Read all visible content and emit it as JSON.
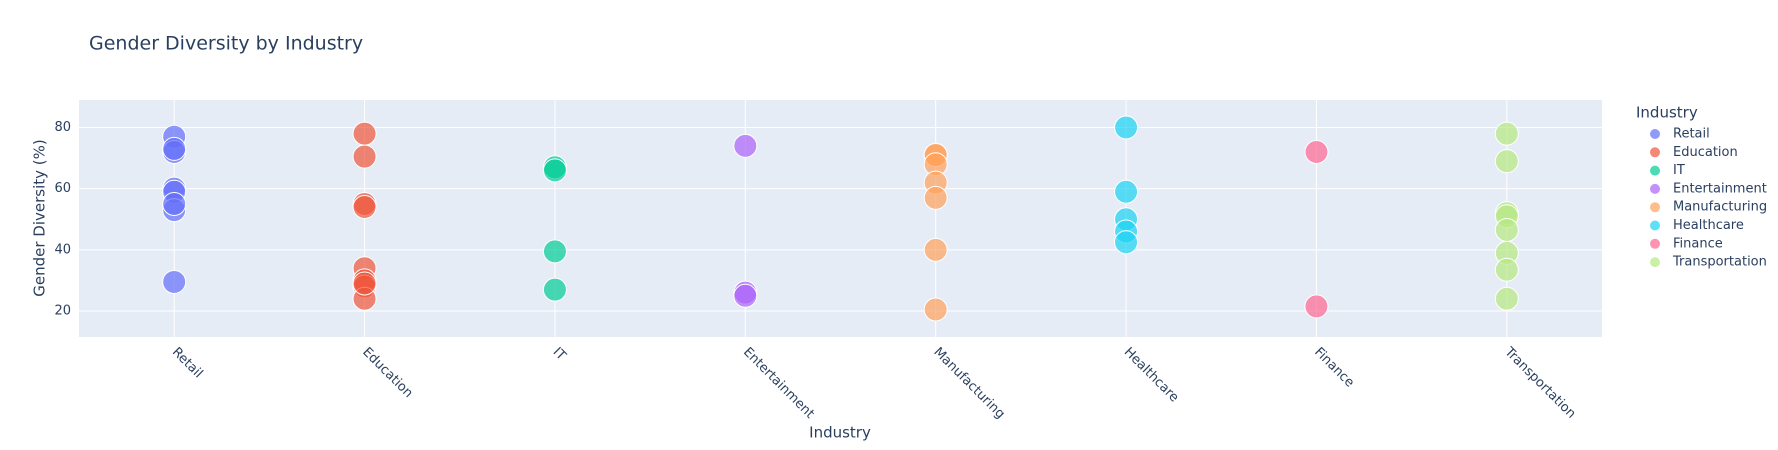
{
  "chart_data": {
    "type": "scatter",
    "title": "Gender Diversity by Industry",
    "x_label": "Industry",
    "y_label": "Gender Diversity (%)",
    "legend_title": "Industry",
    "categories": [
      "Retail",
      "Education",
      "IT",
      "Entertainment",
      "Manufacturing",
      "Healthcare",
      "Finance",
      "Transportation"
    ],
    "ylim": [
      11.5,
      89
    ],
    "yticks": [
      20,
      40,
      60,
      80
    ],
    "grid": true,
    "legend": "right",
    "series": [
      {
        "name": "Retail",
        "color": "#636efa",
        "x": [
          "Retail",
          "Retail",
          "Retail",
          "Retail",
          "Retail",
          "Retail",
          "Retail",
          "Retail"
        ],
        "values": [
          77,
          72,
          73,
          60,
          59,
          53,
          55,
          29.5
        ]
      },
      {
        "name": "Education",
        "color": "#EF553B",
        "x": [
          "Education",
          "Education",
          "Education",
          "Education",
          "Education",
          "Education",
          "Education",
          "Education",
          "Education"
        ],
        "values": [
          78,
          70.5,
          55,
          54,
          34,
          30,
          28,
          24,
          29
        ]
      },
      {
        "name": "IT",
        "color": "#00cc96",
        "x": [
          "IT",
          "IT",
          "IT",
          "IT"
        ],
        "values": [
          67,
          66,
          39.5,
          27
        ]
      },
      {
        "name": "Entertainment",
        "color": "#ab63fa",
        "x": [
          "Entertainment",
          "Entertainment",
          "Entertainment"
        ],
        "values": [
          74,
          26,
          25
        ]
      },
      {
        "name": "Manufacturing",
        "color": "#FFA15A",
        "x": [
          "Manufacturing",
          "Manufacturing",
          "Manufacturing",
          "Manufacturing",
          "Manufacturing",
          "Manufacturing",
          "Manufacturing"
        ],
        "values": [
          71,
          71,
          68,
          62,
          57,
          40,
          20.5
        ]
      },
      {
        "name": "Healthcare",
        "color": "#19d3f3",
        "x": [
          "Healthcare",
          "Healthcare",
          "Healthcare",
          "Healthcare",
          "Healthcare"
        ],
        "values": [
          80,
          59,
          50,
          46,
          42.5
        ]
      },
      {
        "name": "Finance",
        "color": "#FF6692",
        "x": [
          "Finance",
          "Finance"
        ],
        "values": [
          72,
          21.5
        ]
      },
      {
        "name": "Transportation",
        "color": "#B6E880",
        "x": [
          "Transportation",
          "Transportation",
          "Transportation",
          "Transportation",
          "Transportation",
          "Transportation",
          "Transportation",
          "Transportation"
        ],
        "values": [
          78,
          69,
          52,
          51,
          46.5,
          39,
          33.5,
          24
        ]
      }
    ]
  }
}
